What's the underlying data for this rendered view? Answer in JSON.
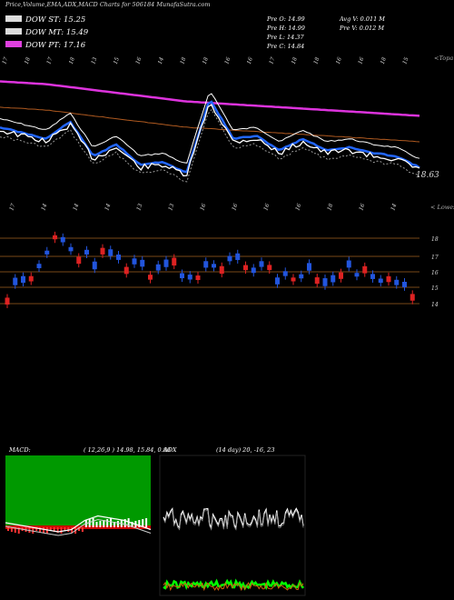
{
  "header": {
    "title": "Price,Volume,EMA,ADX,MACD Charts for 506184  MunafaSutra.com"
  },
  "legend": [
    {
      "label": "DOW ST: 15.25",
      "color": "#dddddd"
    },
    {
      "label": "DOW MT: 15.49",
      "color": "#dddddd"
    },
    {
      "label": "DOW PT: 17.16",
      "color": "#e040e0"
    }
  ],
  "info": {
    "pre_o": "Pre   O: 14.99",
    "pre_h": "Pre   H: 14.99",
    "pre_l": "Pre   L: 14.37",
    "pre_c": "Pre   C: 14.84",
    "avg_v": "Avg V: 0.011 M",
    "pre_v": "Pre   V: 0.012  M"
  },
  "panels": {
    "top_right": "<Topa",
    "mid_right": "< Lowes",
    "last_price": "18.63",
    "macd_label": "MACD:",
    "macd_params": "( 12,26,9 ) 14.98,  15.84,  0.86",
    "adx_label": "ADX",
    "adx_params": "(14  day) 20,  -16,  23"
  },
  "colors": {
    "up": "#2255dd",
    "down": "#dd2222",
    "ema_short": "#ffffff",
    "ema_blue": "#2266ff",
    "ema_long": "#b05a20",
    "ema_pt": "#dd33dd",
    "macd_bg": "#009900"
  },
  "chart_data": [
    {
      "type": "line",
      "title": "EMA panel",
      "top_dates": [
        "17",
        "18",
        "17",
        "18",
        "13",
        "15",
        "16",
        "14",
        "18",
        "18",
        "16",
        "16",
        "17",
        "18",
        "18",
        "16",
        "16",
        "18",
        "15"
      ],
      "series": [
        {
          "name": "DOW PT",
          "values": [
            17.9,
            17.85,
            17.8,
            17.7,
            17.6,
            17.5,
            17.4,
            17.3,
            17.2,
            17.15,
            17.1,
            17.05,
            17.0,
            16.95,
            16.9,
            16.85,
            16.8,
            16.75,
            16.7
          ]
        },
        {
          "name": "price",
          "values": [
            16.2,
            16.0,
            15.8,
            16.4,
            15.2,
            15.6,
            14.9,
            15.0,
            14.6,
            17.2,
            15.8,
            15.9,
            15.4,
            15.8,
            15.4,
            15.5,
            15.3,
            15.2,
            14.8
          ]
        }
      ]
    },
    {
      "type": "bar",
      "title": "candles",
      "mid_dates": [
        "17",
        "14",
        "14",
        "14",
        "13",
        "13",
        "16",
        "16",
        "16",
        "16",
        "18",
        "16",
        "14"
      ],
      "price_levels": [
        "18",
        "17",
        "16",
        "15",
        "14"
      ],
      "values": [
        14.6,
        15.3,
        18.0,
        17.1,
        16.8,
        16.5,
        15.8,
        16.0,
        15.7,
        16.6,
        16.4,
        16.0,
        15.5,
        15.8,
        16.1,
        15.6,
        15.2,
        14.8
      ]
    },
    {
      "type": "line",
      "title": "MACD",
      "values": [
        0.2,
        0.1,
        0.0,
        -0.1,
        -0.2,
        -0.1,
        0.3,
        0.5,
        0.4,
        0.3,
        0.1,
        -0.1
      ]
    },
    {
      "type": "line",
      "title": "ADX",
      "values": [
        22,
        25,
        20,
        27,
        21,
        24,
        20,
        26,
        22,
        23,
        25,
        21
      ]
    }
  ]
}
